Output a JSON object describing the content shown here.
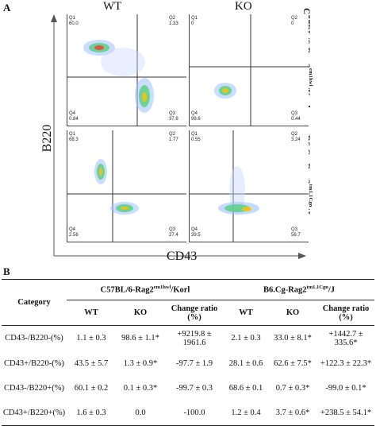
{
  "panelA": {
    "letter": "A",
    "col_wt": "WT",
    "col_ko": "KO",
    "strain_top": "C57BL/6-Rag2em1hwl/Korl",
    "strain_bottom": "B6.Cg-Rag2tm1.1Cgn/J",
    "y_axis": "B220",
    "x_axis": "CD43",
    "plots": [
      {
        "id": "c57-wt",
        "Q1": "60.0",
        "Q2": "1.33",
        "Q3": "37.8",
        "Q4": "0.84"
      },
      {
        "id": "c57-ko",
        "Q1": "0",
        "Q2": "0",
        "Q3": "0.44",
        "Q4": "99.6"
      },
      {
        "id": "b6-wt",
        "Q1": "68.3",
        "Q2": "1.77",
        "Q3": "27.4",
        "Q4": "2.56"
      },
      {
        "id": "b6-ko",
        "Q1": "0.55",
        "Q2": "3.24",
        "Q3": "56.7",
        "Q4": "39.5"
      }
    ]
  },
  "panelB": {
    "letter": "B",
    "category_header": "Category",
    "strain1": "C57BL/6-Rag2em1hwl/Korl",
    "strain2": "B6.Cg-Rag2tm1.1Cgn/J",
    "sub_headers": [
      "WT",
      "KO",
      "Change ratio (%)",
      "WT",
      "KO",
      "Change ratio (%)"
    ],
    "rows": [
      {
        "category": "CD43-/B220-(%)",
        "c1_wt": "1.1 ± 0.3",
        "c1_ko": "98.6 ± 1.1*",
        "c1_ratio": "+9219.8 ± 1961.6",
        "c2_wt": "2.1 ± 0.3",
        "c2_ko": "33.0 ± 8.1*",
        "c2_ratio": "+1442.7 ± 335.6*"
      },
      {
        "category": "CD43+/B220-(%)",
        "c1_wt": "43.5 ± 5.7",
        "c1_ko": "1.3 ± 0.9*",
        "c1_ratio": "-97.7 ± 1.9",
        "c2_wt": "28.1 ± 0.6",
        "c2_ko": "62.6 ± 7.5*",
        "c2_ratio": "+122.3 ± 22.3*"
      },
      {
        "category": "CD43-/B220+(%)",
        "c1_wt": "60.1 ± 0.2",
        "c1_ko": "0.1 ± 0.3*",
        "c1_ratio": "-99.7 ± 0.3",
        "c2_wt": "68.6 ± 0.1",
        "c2_ko": "0.7 ± 0.3*",
        "c2_ratio": "-99.0 ± 0.1*"
      },
      {
        "category": "CD43+/B220+(%)",
        "c1_wt": "1.6 ± 0.3",
        "c1_ko": "0.0",
        "c1_ratio": "-100.0",
        "c2_wt": "1.2 ± 0.4",
        "c2_ko": "3.7 ± 0.6*",
        "c2_ratio": "+238.5 ± 54.1*"
      }
    ]
  }
}
